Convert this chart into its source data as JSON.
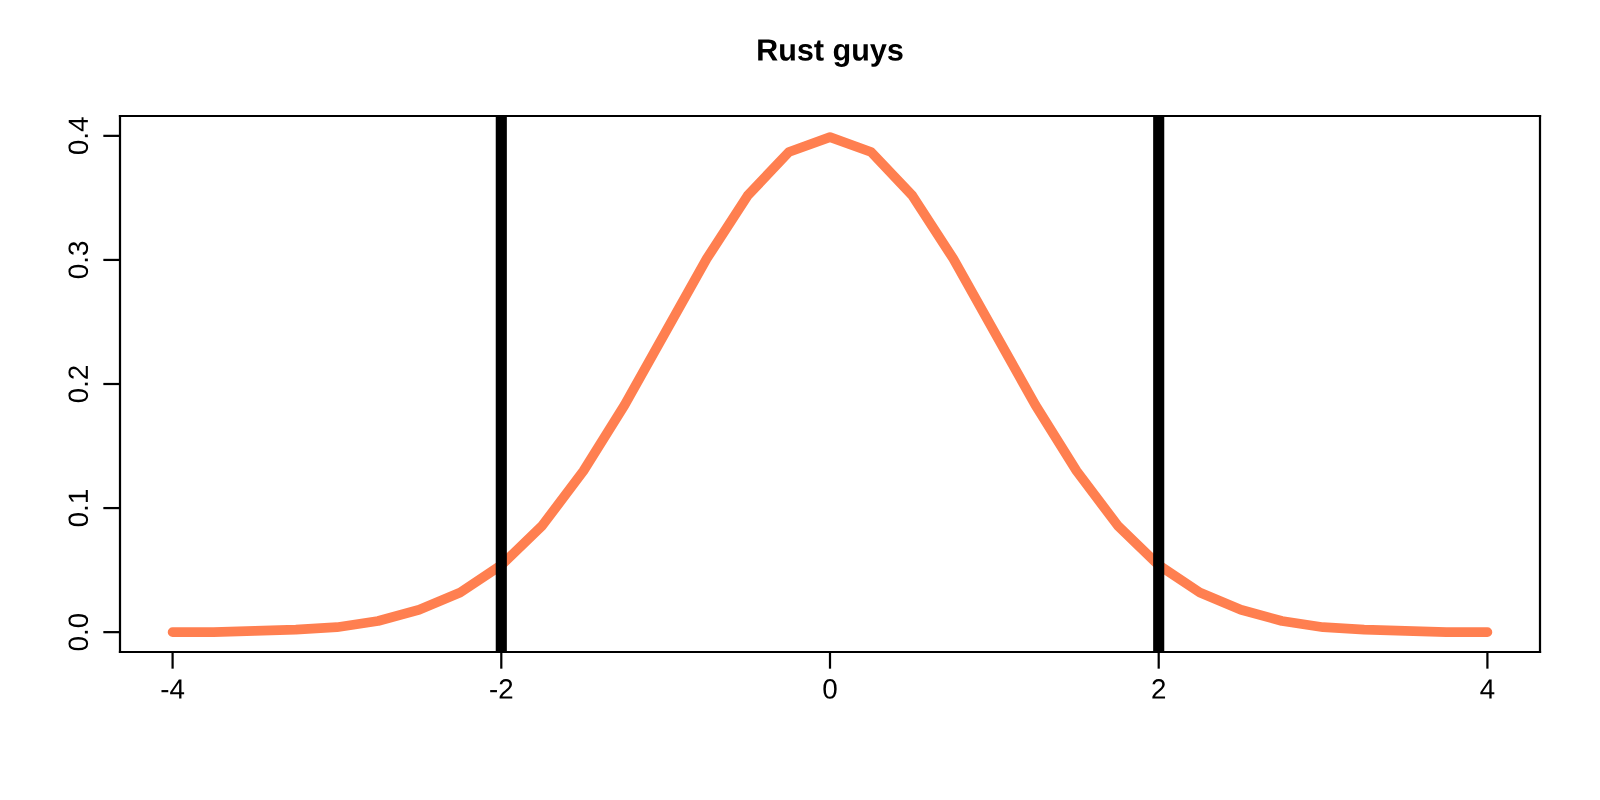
{
  "chart_data": {
    "type": "line",
    "title": "Rust guys",
    "x": [
      -4,
      -3.75,
      -3.5,
      -3.25,
      -3,
      -2.75,
      -2.5,
      -2.25,
      -2,
      -1.75,
      -1.5,
      -1.25,
      -1,
      -0.75,
      -0.5,
      -0.25,
      0,
      0.25,
      0.5,
      0.75,
      1,
      1.25,
      1.5,
      1.75,
      2,
      2.25,
      2.5,
      2.75,
      3,
      3.25,
      3.5,
      3.75,
      4
    ],
    "series": [
      {
        "color": "#ff7f50",
        "values": [
          0.0,
          0.0,
          0.001,
          0.002,
          0.004,
          0.009,
          0.018,
          0.032,
          0.054,
          0.086,
          0.13,
          0.183,
          0.242,
          0.301,
          0.352,
          0.387,
          0.399,
          0.387,
          0.352,
          0.301,
          0.242,
          0.183,
          0.13,
          0.086,
          0.054,
          0.032,
          0.018,
          0.009,
          0.004,
          0.002,
          0.001,
          0.0,
          0.0
        ]
      }
    ],
    "xlim": [
      -4.32,
      4.32
    ],
    "ylim": [
      -0.016,
      0.416
    ],
    "xticks": [
      -4,
      -2,
      0,
      2,
      4
    ],
    "yticks": [
      {
        "value": 0,
        "label": "0.0"
      },
      0.1,
      0.2,
      0.3,
      0.4
    ],
    "ref_lines": [
      {
        "axis": "x",
        "value": -2,
        "color": "#000000"
      },
      {
        "axis": "x",
        "value": 2,
        "color": "#000000"
      }
    ],
    "grid": false,
    "marker": "none",
    "line_style": "solid"
  }
}
